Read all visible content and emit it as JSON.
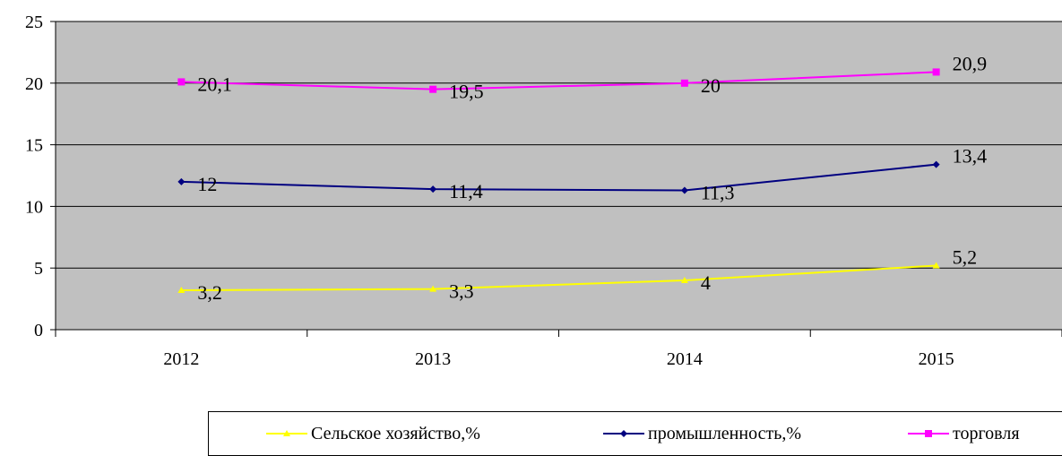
{
  "chart_data": {
    "type": "line",
    "categories": [
      "2012",
      "2013",
      "2014",
      "2015"
    ],
    "ylim": [
      0,
      25
    ],
    "yticks": [
      "0",
      "5",
      "10",
      "15",
      "20",
      "25"
    ],
    "grid": true,
    "legend_position": "bottom",
    "series": [
      {
        "name": "Сельское хозяйство,%",
        "color": "#ffff00",
        "marker": "triangle",
        "values": [
          3.2,
          3.3,
          4,
          5.2
        ],
        "labels": [
          "3,2",
          "3,3",
          "4",
          "5,2"
        ]
      },
      {
        "name": "промышленность,%",
        "color": "#000080",
        "marker": "diamond",
        "values": [
          12,
          11.4,
          11.3,
          13.4
        ],
        "labels": [
          "12",
          "11,4",
          "11,3",
          "13,4"
        ]
      },
      {
        "name": "торговля",
        "color": "#ff00ff",
        "marker": "square",
        "values": [
          20.1,
          19.5,
          20,
          20.9
        ],
        "labels": [
          "20,1",
          "19,5",
          "20",
          "20,9"
        ]
      }
    ],
    "colors": {
      "plot_background": "#c0c0c0",
      "gridline": "#000000"
    }
  }
}
